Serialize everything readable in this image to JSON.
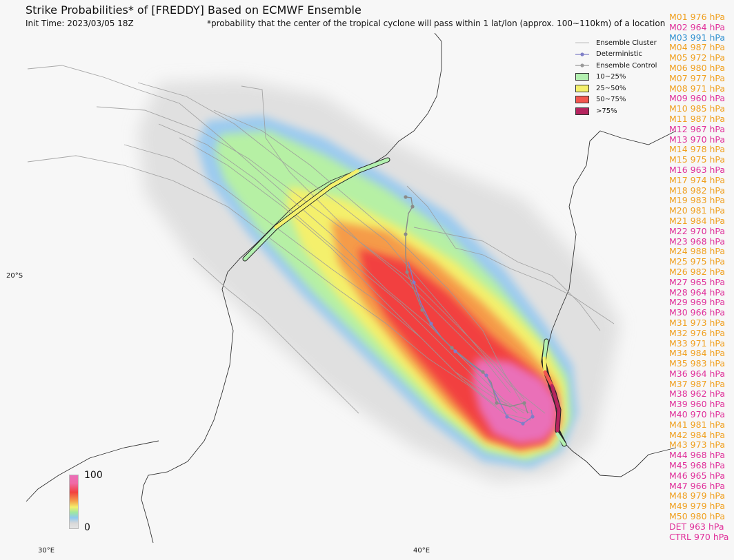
{
  "title": "Strike Probabilities* of [FREDDY] Based on ECMWF Ensemble",
  "init_time": "Init Time: 2023/03/05 18Z",
  "footnote": "*probability that the center of the tropical cyclone will pass within 1 lat/lon (approx. 100~110km) of a location",
  "legend": {
    "cluster": "Ensemble Cluster",
    "deterministic": "Deterministic",
    "control": "Ensemble Control",
    "bin1": "10~25%",
    "bin2": "25~50%",
    "bin3": "50~75%",
    "bin4": ">75%"
  },
  "colors": {
    "bin1": "#b3f0b0",
    "bin2": "#f4f06c",
    "bin3": "#f2564f",
    "bin4": "#b5245e",
    "deterministic": "#7f7fc7",
    "control": "#999999",
    "pressure_orange": "#f0a020",
    "pressure_magenta": "#e0309a",
    "pressure_blue": "#3090d0"
  },
  "axes": {
    "lat_label": "20°S",
    "lon_labels": [
      "30°E",
      "40°E"
    ]
  },
  "colorbar": {
    "max": "100",
    "min": "0"
  },
  "members": [
    {
      "label": "M01 976 hPa",
      "color": "#f0a020"
    },
    {
      "label": "M02 964 hPa",
      "color": "#e0309a"
    },
    {
      "label": "M03 991 hPa",
      "color": "#3090d0"
    },
    {
      "label": "M04 987 hPa",
      "color": "#f0a020"
    },
    {
      "label": "M05 972 hPa",
      "color": "#f0a020"
    },
    {
      "label": "M06 980 hPa",
      "color": "#f0a020"
    },
    {
      "label": "M07 977 hPa",
      "color": "#f0a020"
    },
    {
      "label": "M08 971 hPa",
      "color": "#f0a020"
    },
    {
      "label": "M09 960 hPa",
      "color": "#e0309a"
    },
    {
      "label": "M10 985 hPa",
      "color": "#f0a020"
    },
    {
      "label": "M11 987 hPa",
      "color": "#f0a020"
    },
    {
      "label": "M12 967 hPa",
      "color": "#e0309a"
    },
    {
      "label": "M13 970 hPa",
      "color": "#e0309a"
    },
    {
      "label": "M14 978 hPa",
      "color": "#f0a020"
    },
    {
      "label": "M15 975 hPa",
      "color": "#f0a020"
    },
    {
      "label": "M16 963 hPa",
      "color": "#e0309a"
    },
    {
      "label": "M17 974 hPa",
      "color": "#f0a020"
    },
    {
      "label": "M18 982 hPa",
      "color": "#f0a020"
    },
    {
      "label": "M19 983 hPa",
      "color": "#f0a020"
    },
    {
      "label": "M20 981 hPa",
      "color": "#f0a020"
    },
    {
      "label": "M21 984 hPa",
      "color": "#f0a020"
    },
    {
      "label": "M22 970 hPa",
      "color": "#e0309a"
    },
    {
      "label": "M23 968 hPa",
      "color": "#e0309a"
    },
    {
      "label": "M24 988 hPa",
      "color": "#f0a020"
    },
    {
      "label": "M25 975 hPa",
      "color": "#f0a020"
    },
    {
      "label": "M26 982 hPa",
      "color": "#f0a020"
    },
    {
      "label": "M27 965 hPa",
      "color": "#e0309a"
    },
    {
      "label": "M28 964 hPa",
      "color": "#e0309a"
    },
    {
      "label": "M29 969 hPa",
      "color": "#e0309a"
    },
    {
      "label": "M30 966 hPa",
      "color": "#e0309a"
    },
    {
      "label": "M31 973 hPa",
      "color": "#f0a020"
    },
    {
      "label": "M32 976 hPa",
      "color": "#f0a020"
    },
    {
      "label": "M33 971 hPa",
      "color": "#f0a020"
    },
    {
      "label": "M34 984 hPa",
      "color": "#f0a020"
    },
    {
      "label": "M35 983 hPa",
      "color": "#f0a020"
    },
    {
      "label": "M36 964 hPa",
      "color": "#e0309a"
    },
    {
      "label": "M37 987 hPa",
      "color": "#f0a020"
    },
    {
      "label": "M38 962 hPa",
      "color": "#e0309a"
    },
    {
      "label": "M39 960 hPa",
      "color": "#e0309a"
    },
    {
      "label": "M40 970 hPa",
      "color": "#e0309a"
    },
    {
      "label": "M41 981 hPa",
      "color": "#f0a020"
    },
    {
      "label": "M42 984 hPa",
      "color": "#f0a020"
    },
    {
      "label": "M43 973 hPa",
      "color": "#f0a020"
    },
    {
      "label": "M44 968 hPa",
      "color": "#e0309a"
    },
    {
      "label": "M45 968 hPa",
      "color": "#e0309a"
    },
    {
      "label": "M46 965 hPa",
      "color": "#e0309a"
    },
    {
      "label": "M47 966 hPa",
      "color": "#e0309a"
    },
    {
      "label": "M48 979 hPa",
      "color": "#f0a020"
    },
    {
      "label": "M49 979 hPa",
      "color": "#f0a020"
    },
    {
      "label": "M50 980 hPa",
      "color": "#f0a020"
    },
    {
      "label": "DET 963 hPa",
      "color": "#e0309a"
    },
    {
      "label": "CTRL 970 hPa",
      "color": "#e0309a"
    }
  ]
}
